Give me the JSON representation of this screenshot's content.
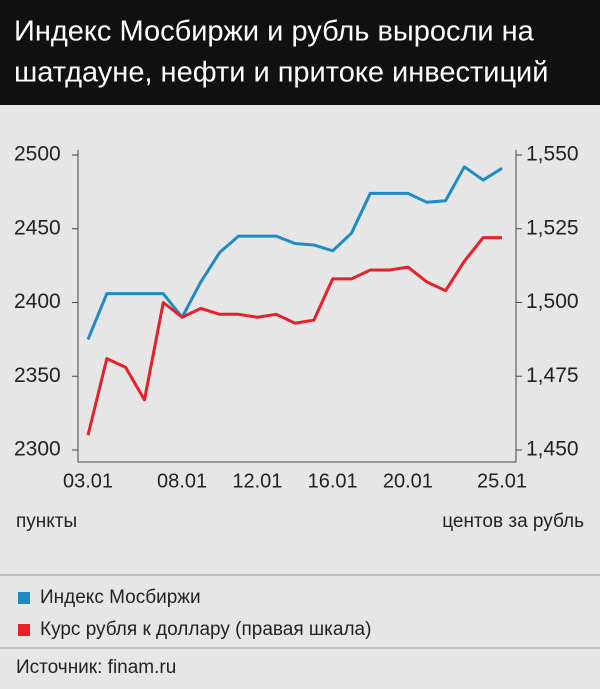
{
  "chart_data": {
    "type": "line",
    "title": [
      "Индекс Мосбиржи и рубль выросли на",
      "шатдауне, нефти и притоке инвестиций"
    ],
    "categories": [
      "03.01",
      null,
      null,
      null,
      null,
      "08.01",
      null,
      null,
      null,
      "12.01",
      null,
      null,
      null,
      "16.01",
      null,
      null,
      null,
      "20.01",
      null,
      null,
      null,
      null,
      "25.01"
    ],
    "series": [
      {
        "name": "Индекс Мосбиржи",
        "color": "#1e8bc3",
        "values": [
          2375,
          2406,
          2406,
          2406,
          2406,
          2390,
          2414,
          2434,
          2445,
          2445,
          2445,
          2440,
          2439,
          2435,
          2447,
          2474,
          2474,
          2474,
          2468,
          2469,
          2492,
          2483,
          2491
        ]
      },
      {
        "name": "Курс рубля к доллару (правая шкала)",
        "color": "#e8202a",
        "axis": "y2",
        "values": [
          1.455,
          1.481,
          1.478,
          1.467,
          1.5,
          1.495,
          1.498,
          1.496,
          1.496,
          1.495,
          1.496,
          1.493,
          1.494,
          1.508,
          1.508,
          1.511,
          1.511,
          1.512,
          1.507,
          1.504,
          1.514,
          1.522,
          1.522
        ]
      }
    ],
    "ylim": [
      2300,
      2500
    ],
    "yticks": [
      2300,
      2350,
      2400,
      2450,
      2500
    ],
    "y2lim": [
      1.45,
      1.55
    ],
    "y2ticks": [
      {
        "value": 1.45,
        "label": "1,450"
      },
      {
        "value": 1.475,
        "label": "1,475"
      },
      {
        "value": 1.5,
        "label": "1,500"
      },
      {
        "value": 1.525,
        "label": "1,525"
      },
      {
        "value": 1.55,
        "label": "1,550"
      }
    ],
    "ylabel": "пункты",
    "y2label": "центов за рубль",
    "source": "Источник: finam.ru"
  }
}
